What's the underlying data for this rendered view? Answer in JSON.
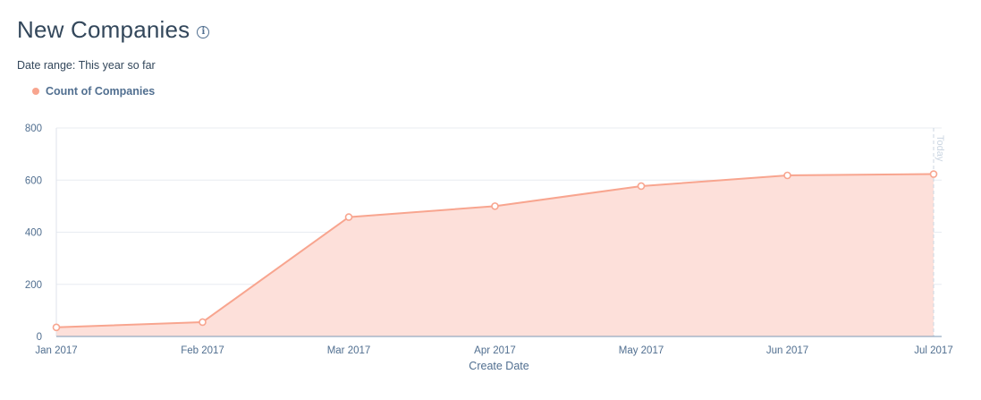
{
  "header": {
    "title": "New Companies",
    "info_icon": "info-icon",
    "date_range": "Date range: This year so far"
  },
  "legend": {
    "items": [
      {
        "label": "Count of Companies",
        "color": "#f8a58f"
      }
    ]
  },
  "colors": {
    "line": "#f8a58f",
    "fill": "#fde0da",
    "grid": "#e8ecf1",
    "axis_text": "#516f90",
    "today": "#cbd6e2"
  },
  "chart_data": {
    "type": "area",
    "title": "New Companies",
    "xlabel": "Create Date",
    "ylabel": "",
    "categories": [
      "Jan 2017",
      "Feb 2017",
      "Mar 2017",
      "Apr 2017",
      "May 2017",
      "Jun 2017",
      "Jul 2017"
    ],
    "series": [
      {
        "name": "Count of Companies",
        "values": [
          35,
          55,
          458,
          500,
          577,
          618,
          623
        ]
      }
    ],
    "ylim": [
      0,
      800
    ],
    "yticks": [
      0,
      200,
      400,
      600,
      800
    ],
    "grid": true,
    "legend_position": "top-left",
    "annotations": [
      {
        "label": "Today",
        "category": "Jul 2017"
      }
    ]
  }
}
